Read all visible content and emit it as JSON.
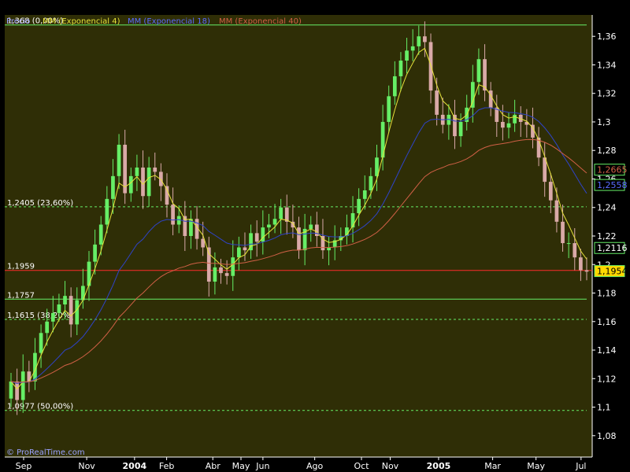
{
  "colors": {
    "background": "#000000",
    "plot_bg": "#2f2e06",
    "up": "#66ee66",
    "down": "#d9a9a8",
    "ma4": "#e6e23a",
    "ma18": "#2f43c8",
    "ma40": "#d06046",
    "fib": "#66ee66",
    "support": "#ff2a2a"
  },
  "legend": {
    "price": "Precio",
    "ma4": "MM (Exponencial 4)",
    "ma18": "MM (Exponencial 18)",
    "ma40": "MM (Exponencial 40)"
  },
  "watermark": "© ProRealTime.com",
  "chart_data": {
    "type": "candlestick",
    "ylim": [
      1.065,
      1.375
    ],
    "y_ticks": [
      "1,08",
      "1,1",
      "1,12",
      "1,14",
      "1,16",
      "1,18",
      "1,2",
      "1,22",
      "1,24",
      "1,26",
      "1,28",
      "1,3",
      "1,32",
      "1,34",
      "1,36"
    ],
    "x_labels": [
      "Sep",
      "Nov",
      "2004",
      "Feb",
      "Abr",
      "May",
      "Jun",
      "Ago",
      "Oct",
      "Nov",
      "2005",
      "Mar",
      "May",
      "Jul"
    ],
    "bar_count": 97,
    "horizontal_lines": [
      {
        "label": "1,368 (0,00%)",
        "value": 1.368,
        "style": "solid"
      },
      {
        "label": "1,2405 (23,60%)",
        "value": 1.2405,
        "style": "dashed"
      },
      {
        "label": "1,1959",
        "value": 1.1959,
        "style": "support"
      },
      {
        "label": "1,1757",
        "value": 1.1757,
        "style": "solid"
      },
      {
        "label": "1,1615 (38,20%)",
        "value": 1.1615,
        "style": "dashed"
      },
      {
        "label": "1,0977 (50,00%)",
        "value": 1.0977,
        "style": "dashed"
      }
    ],
    "price_tags": [
      {
        "label": "1,2665",
        "value": 1.2665,
        "color": "#d06046",
        "bg": "#000000"
      },
      {
        "label": "1,2558",
        "value": 1.2558,
        "color": "#5a6cff",
        "bg": "#000000"
      },
      {
        "label": "1,2116",
        "value": 1.2116,
        "color": "#ffffff",
        "bg": "#000000"
      },
      {
        "label": "1,1954",
        "value": 1.1954,
        "color": "#000000",
        "bg": "#ffd800"
      }
    ],
    "series_close": [
      1.118,
      1.105,
      1.125,
      1.118,
      1.138,
      1.152,
      1.16,
      1.166,
      1.172,
      1.178,
      1.158,
      1.175,
      1.185,
      1.202,
      1.214,
      1.228,
      1.246,
      1.262,
      1.284,
      1.25,
      1.262,
      1.268,
      1.248,
      1.268,
      1.265,
      1.255,
      1.242,
      1.228,
      1.234,
      1.22,
      1.232,
      1.218,
      1.212,
      1.188,
      1.198,
      1.194,
      1.192,
      1.205,
      1.212,
      1.21,
      1.222,
      1.216,
      1.226,
      1.228,
      1.232,
      1.24,
      1.23,
      1.226,
      1.21,
      1.225,
      1.228,
      1.22,
      1.21,
      1.212,
      1.217,
      1.22,
      1.226,
      1.236,
      1.246,
      1.252,
      1.262,
      1.275,
      1.3,
      1.318,
      1.332,
      1.343,
      1.35,
      1.353,
      1.36,
      1.356,
      1.322,
      1.305,
      1.298,
      1.305,
      1.29,
      1.3,
      1.31,
      1.328,
      1.344,
      1.322,
      1.31,
      1.3,
      1.296,
      1.299,
      1.305,
      1.3,
      1.298,
      1.289,
      1.275,
      1.258,
      1.245,
      1.23,
      1.215,
      1.215,
      1.205,
      1.196,
      1.195
    ]
  }
}
